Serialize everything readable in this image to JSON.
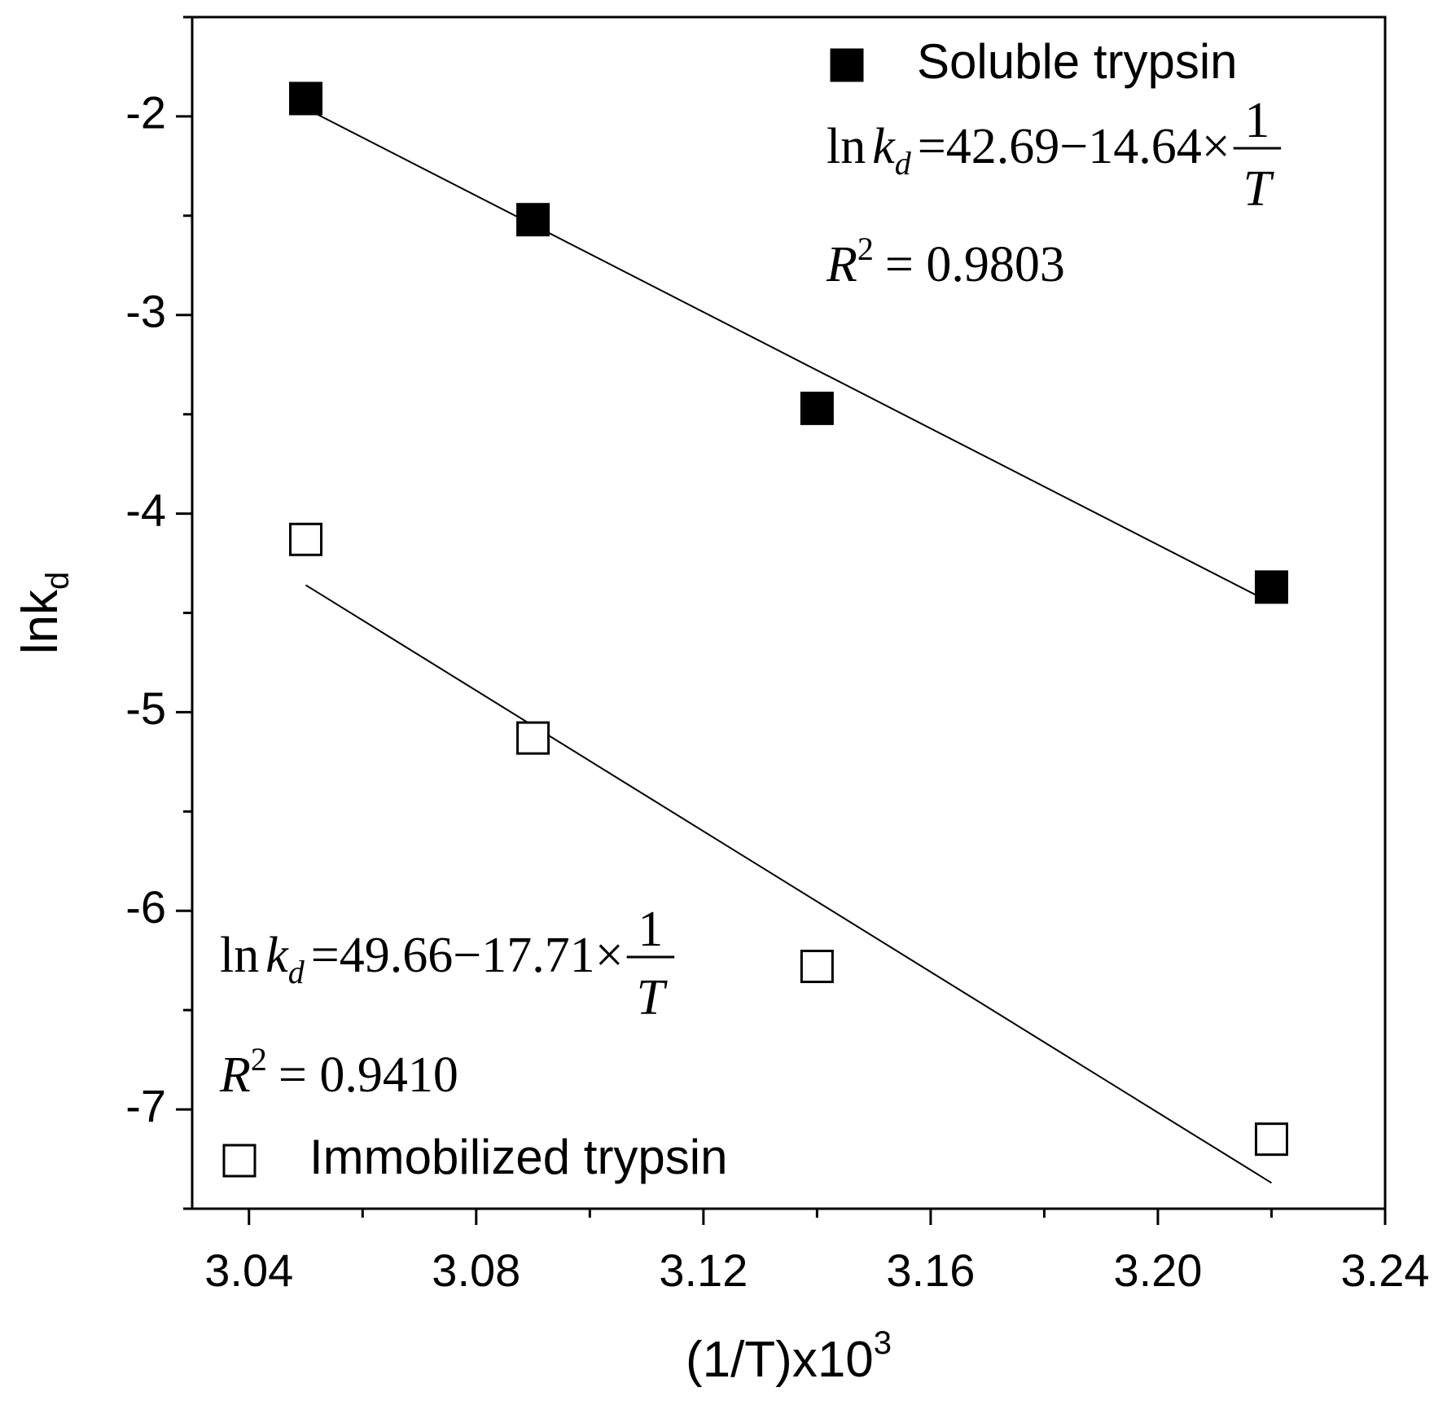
{
  "chart_data": {
    "type": "scatter",
    "xlabel": {
      "text": "(1/T)x10",
      "sup": "3"
    },
    "ylabel": {
      "text": "lnk",
      "sub": "d"
    },
    "xlim": [
      3.03,
      3.24
    ],
    "ylim": [
      -7.5,
      -1.5
    ],
    "xticks": [
      3.04,
      3.08,
      3.12,
      3.16,
      {
        "value": 3.2,
        "label": "3.20"
      },
      3.24
    ],
    "xminorticks": [
      3.06,
      3.1,
      3.14,
      3.18,
      3.22
    ],
    "yticks": [
      -7,
      -6,
      -5,
      -4,
      -3,
      -2
    ],
    "yminorticks": [
      -7.5,
      -6.5,
      -5.5,
      -4.5,
      -3.5,
      -2.5,
      -1.5
    ],
    "x": [
      3.05,
      3.09,
      3.14,
      3.22
    ],
    "series": [
      {
        "name": "Soluble trypsin",
        "color": "#000000",
        "marker_fill": "#000000",
        "legend_position": "top-right",
        "values": [
          -1.91,
          -2.52,
          -3.47,
          -4.37
        ],
        "fit": {
          "x": [
            3.05,
            3.22
          ],
          "values": [
            -1.96,
            -4.45
          ]
        },
        "equation": {
          "fn": "ln",
          "var": "k",
          "sub": "d",
          "rhs": "=42.69−14.64×",
          "num": "1",
          "den": "T"
        },
        "r2": {
          "var": "R",
          "sup": "2",
          "rhs": "= 0.9803"
        }
      },
      {
        "name": "Immobilized trypsin",
        "color": "#000000",
        "marker_fill": "#ffffff",
        "legend_position": "bottom-left",
        "values": [
          -4.13,
          -5.13,
          -6.28,
          -7.15
        ],
        "fit": {
          "x": [
            3.05,
            3.22
          ],
          "values": [
            -4.36,
            -7.37
          ]
        },
        "equation": {
          "fn": "ln",
          "var": "k",
          "sub": "d",
          "rhs": "=49.66−17.71×",
          "num": "1",
          "den": "T"
        },
        "r2": {
          "var": "R",
          "sup": "2",
          "rhs": "= 0.9410"
        }
      }
    ]
  }
}
